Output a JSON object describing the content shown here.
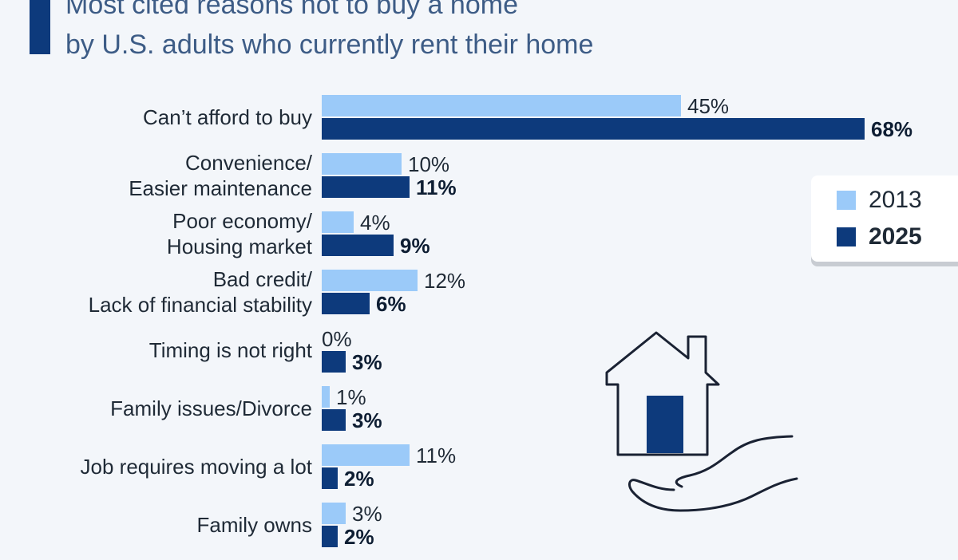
{
  "title": {
    "line1": "Most cited reasons not to buy a home",
    "line2": "by U.S. adults who currently rent their home"
  },
  "colors": {
    "s2013": "#9bcaf9",
    "s2025": "#0d3a7c"
  },
  "icon": "house-in-hand-icon",
  "chart_data": {
    "type": "bar",
    "orientation": "horizontal",
    "categories": [
      [
        "Can’t afford to buy"
      ],
      [
        "Convenience/",
        "Easier maintenance"
      ],
      [
        "Poor economy/",
        "Housing market"
      ],
      [
        "Bad credit/",
        "Lack of financial stability"
      ],
      [
        "Timing is not right"
      ],
      [
        "Family issues/Divorce"
      ],
      [
        "Job requires moving a lot"
      ],
      [
        "Family owns"
      ]
    ],
    "series": [
      {
        "name": "2013",
        "values": [
          45,
          10,
          4,
          12,
          0,
          1,
          11,
          3
        ],
        "labels": [
          "45%",
          "10%",
          "4%",
          "12%",
          "0%",
          "1%",
          "11%",
          "3%"
        ]
      },
      {
        "name": "2025",
        "values": [
          68,
          11,
          9,
          6,
          3,
          3,
          2,
          2
        ],
        "labels": [
          "68%",
          "11%",
          "9%",
          "6%",
          "3%",
          "3%",
          "2%",
          "2%"
        ]
      }
    ],
    "legend": [
      "2013",
      "2025"
    ],
    "legend_position": "right",
    "grid": false
  }
}
